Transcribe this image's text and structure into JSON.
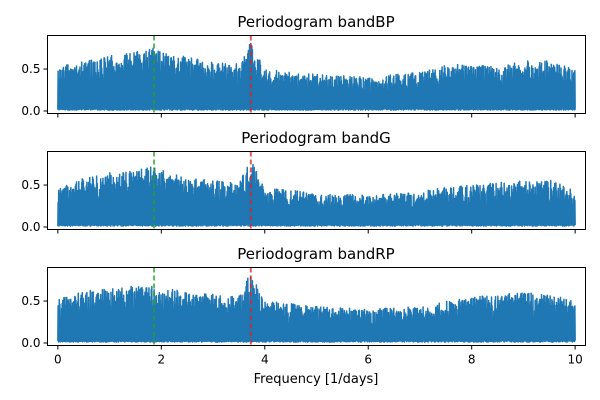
{
  "figure": {
    "xlabel": "Frequency [1/days]"
  },
  "chart_data": [
    {
      "type": "line",
      "title": "Periodogram bandBP",
      "xlabel": "",
      "ylabel": "",
      "xlim": [
        -0.2,
        10.2
      ],
      "ylim": [
        -0.03,
        0.9
      ],
      "x_ticks": [
        0,
        2,
        4,
        6,
        8,
        10
      ],
      "x_tick_labels_visible": false,
      "y_ticks": [
        0.0,
        0.5
      ],
      "y_tick_labels": [
        "0.0",
        "0.5"
      ],
      "grid": false,
      "series": [
        {
          "color": "#1f77b4",
          "x_range": [
            0,
            10
          ],
          "min": 0.01,
          "envelope_x": [
            0,
            0.5,
            1.0,
            1.5,
            1.85,
            2.0,
            2.5,
            3.0,
            3.5,
            3.73,
            4.0,
            4.5,
            5.0,
            5.5,
            6.0,
            6.5,
            7.0,
            7.5,
            8.0,
            8.5,
            9.0,
            9.5,
            10.0
          ],
          "envelope_max": [
            0.52,
            0.6,
            0.66,
            0.7,
            0.75,
            0.72,
            0.64,
            0.58,
            0.56,
            0.82,
            0.5,
            0.46,
            0.44,
            0.42,
            0.4,
            0.44,
            0.47,
            0.55,
            0.56,
            0.52,
            0.6,
            0.6,
            0.5
          ]
        }
      ],
      "vlines": [
        {
          "x": 1.86,
          "color": "#2ca02c"
        },
        {
          "x": 3.73,
          "color": "#d62728"
        }
      ]
    },
    {
      "type": "line",
      "title": "Periodogram bandG",
      "xlabel": "",
      "ylabel": "",
      "xlim": [
        -0.2,
        10.2
      ],
      "ylim": [
        -0.03,
        0.9
      ],
      "x_ticks": [
        0,
        2,
        4,
        6,
        8,
        10
      ],
      "x_tick_labels_visible": false,
      "y_ticks": [
        0.0,
        0.5
      ],
      "y_tick_labels": [
        "0.0",
        "0.5"
      ],
      "grid": false,
      "series": [
        {
          "color": "#1f77b4",
          "x_range": [
            0,
            10
          ],
          "min": 0.01,
          "envelope_x": [
            0,
            0.5,
            1.0,
            1.5,
            1.85,
            2.0,
            2.5,
            3.0,
            3.5,
            3.73,
            4.0,
            4.5,
            5.0,
            5.5,
            6.0,
            6.5,
            7.0,
            7.5,
            8.0,
            8.5,
            9.0,
            9.5,
            10.0
          ],
          "envelope_max": [
            0.46,
            0.58,
            0.65,
            0.7,
            0.72,
            0.68,
            0.58,
            0.56,
            0.52,
            0.8,
            0.46,
            0.44,
            0.4,
            0.39,
            0.38,
            0.4,
            0.43,
            0.47,
            0.5,
            0.53,
            0.55,
            0.56,
            0.45
          ]
        }
      ],
      "vlines": [
        {
          "x": 1.86,
          "color": "#2ca02c"
        },
        {
          "x": 3.73,
          "color": "#d62728"
        }
      ]
    },
    {
      "type": "line",
      "title": "Periodogram bandRP",
      "xlabel": "Frequency [1/days]",
      "ylabel": "",
      "xlim": [
        -0.2,
        10.2
      ],
      "ylim": [
        -0.03,
        0.9
      ],
      "x_ticks": [
        0,
        2,
        4,
        6,
        8,
        10
      ],
      "x_tick_labels": [
        "0",
        "2",
        "4",
        "6",
        "8",
        "10"
      ],
      "x_tick_labels_visible": true,
      "y_ticks": [
        0.0,
        0.5
      ],
      "y_tick_labels": [
        "0.0",
        "0.5"
      ],
      "grid": false,
      "series": [
        {
          "color": "#1f77b4",
          "x_range": [
            0,
            10
          ],
          "min": 0.01,
          "envelope_x": [
            0,
            0.5,
            1.0,
            1.5,
            1.85,
            2.0,
            2.5,
            3.0,
            3.5,
            3.73,
            4.0,
            4.5,
            5.0,
            5.5,
            6.0,
            6.5,
            7.0,
            7.5,
            8.0,
            8.5,
            9.0,
            9.5,
            10.0
          ],
          "envelope_max": [
            0.52,
            0.62,
            0.66,
            0.68,
            0.7,
            0.68,
            0.6,
            0.58,
            0.56,
            0.85,
            0.5,
            0.47,
            0.45,
            0.42,
            0.4,
            0.42,
            0.45,
            0.5,
            0.55,
            0.58,
            0.6,
            0.58,
            0.5
          ]
        }
      ],
      "vlines": [
        {
          "x": 1.86,
          "color": "#2ca02c"
        },
        {
          "x": 3.73,
          "color": "#d62728"
        }
      ]
    }
  ]
}
